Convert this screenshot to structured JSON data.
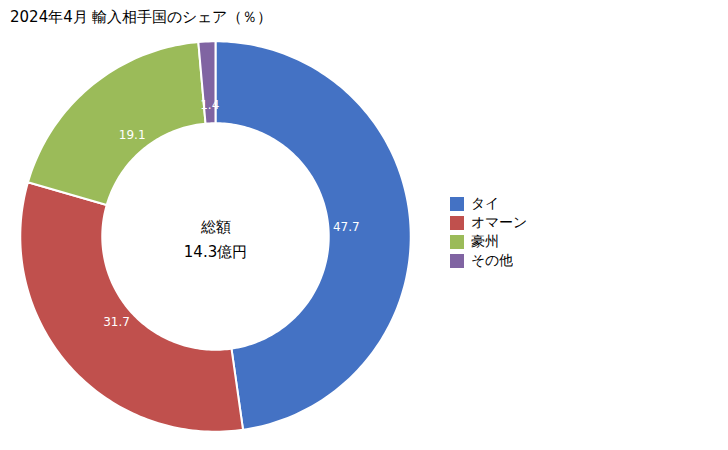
{
  "chart_data": {
    "type": "pie",
    "title": "2024年4月 輸入相手国のシェア（％）",
    "categories": [
      "タイ",
      "オマーン",
      "豪州",
      "その他"
    ],
    "values": [
      47.7,
      31.7,
      19.1,
      1.4
    ],
    "colors": [
      "#4472C4",
      "#C0504D",
      "#9BBB59",
      "#8064A2"
    ],
    "annotations": [
      "総額",
      "14.3億円"
    ],
    "data_labels": true,
    "legend": "right"
  }
}
